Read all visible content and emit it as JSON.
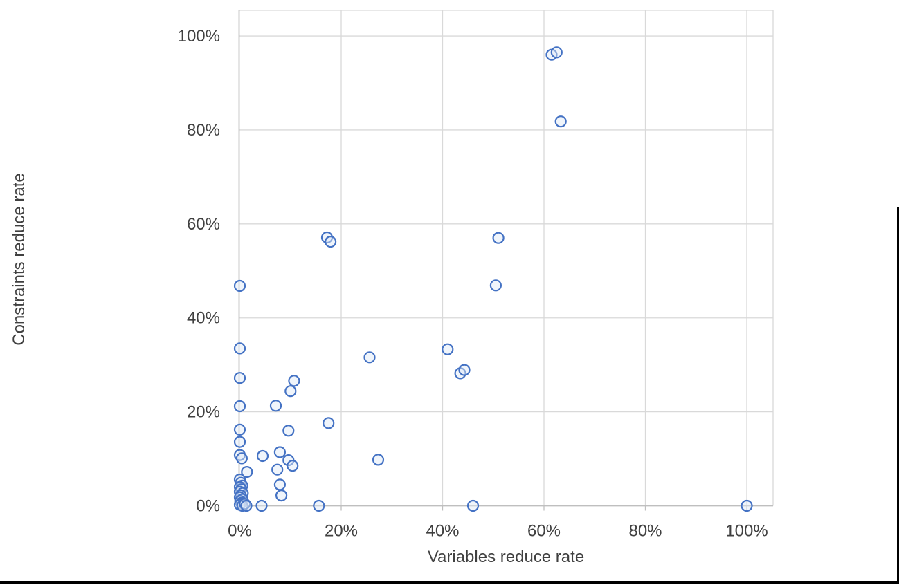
{
  "chart_data": {
    "type": "scatter",
    "title": "",
    "xlabel": "Variables reduce rate",
    "ylabel": "Constraints reduce rate",
    "x_ticks": [
      "0%",
      "20%",
      "40%",
      "60%",
      "80%",
      "100%"
    ],
    "y_ticks": [
      "0%",
      "20%",
      "40%",
      "60%",
      "80%",
      "100%"
    ],
    "xlim": [
      0,
      105
    ],
    "ylim": [
      0,
      105
    ],
    "grid": true,
    "legend": "none",
    "units": "percent",
    "marker": {
      "shape": "open-circle",
      "stroke": "#4472C4",
      "fill": "#dde8f7",
      "radius_px": 7.5
    },
    "colors": {
      "gridline": "#d9d9d9",
      "axis_line": "#bfbfbf",
      "tick_text": "#404040",
      "marker_stroke": "#4472C4",
      "page_rule": "#000000"
    },
    "points": [
      [
        61.5,
        96.0
      ],
      [
        62.5,
        96.5
      ],
      [
        63.3,
        81.8
      ],
      [
        51.0,
        57.0
      ],
      [
        50.5,
        46.9
      ],
      [
        46.0,
        0.0
      ],
      [
        100.0,
        0.0
      ],
      [
        41.0,
        33.3
      ],
      [
        43.5,
        28.2
      ],
      [
        44.3,
        28.9
      ],
      [
        25.6,
        31.6
      ],
      [
        27.3,
        9.8
      ],
      [
        17.2,
        57.1
      ],
      [
        17.9,
        56.2
      ],
      [
        17.5,
        17.6
      ],
      [
        15.6,
        0.0
      ],
      [
        10.7,
        26.6
      ],
      [
        10.0,
        24.4
      ],
      [
        9.6,
        16.0
      ],
      [
        7.1,
        21.3
      ],
      [
        7.9,
        11.4
      ],
      [
        9.6,
        9.7
      ],
      [
        10.4,
        8.5
      ],
      [
        7.4,
        7.7
      ],
      [
        4.5,
        10.6
      ],
      [
        7.9,
        4.5
      ],
      [
        8.2,
        2.2
      ],
      [
        4.3,
        0.0
      ],
      [
        1.4,
        7.2
      ],
      [
        0.0,
        46.8
      ],
      [
        0.0,
        33.5
      ],
      [
        0.0,
        27.2
      ],
      [
        0.0,
        21.2
      ],
      [
        0.0,
        16.2
      ],
      [
        0.0,
        13.6
      ],
      [
        0.0,
        10.8
      ],
      [
        0.4,
        10.1
      ],
      [
        0.0,
        5.6
      ],
      [
        0.2,
        4.9
      ],
      [
        0.5,
        4.3
      ],
      [
        0.0,
        4.0
      ],
      [
        0.3,
        3.5
      ],
      [
        0.0,
        3.0
      ],
      [
        0.6,
        2.7
      ],
      [
        0.2,
        2.2
      ],
      [
        0.0,
        1.8
      ],
      [
        0.5,
        1.4
      ],
      [
        0.1,
        1.0
      ],
      [
        0.3,
        0.6
      ],
      [
        0.0,
        0.2
      ],
      [
        0.5,
        0.0
      ],
      [
        1.0,
        0.4
      ],
      [
        1.3,
        0.0
      ]
    ]
  }
}
